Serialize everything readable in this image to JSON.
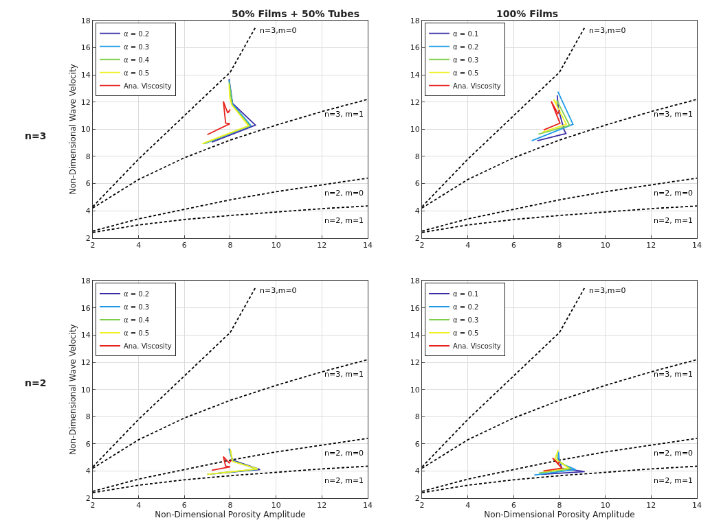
{
  "chart_data": [
    {
      "type": "line",
      "title": "50% Films + 50% Tubes",
      "ylabel": "Non-Dimensional Wave Velocity",
      "xlim": [
        2,
        14
      ],
      "ylim": [
        2,
        18
      ],
      "xticks": [
        2,
        4,
        6,
        8,
        10,
        12,
        14
      ],
      "yticks": [
        2,
        4,
        6,
        8,
        10,
        12,
        14,
        16,
        18
      ],
      "grid": true,
      "legend": "top left",
      "marker": "none",
      "annotations": [
        "n=3"
      ],
      "series": [
        {
          "name": "n=3,m=0",
          "color": "#000000",
          "line_style": "dashed",
          "x": [
            2,
            4,
            6,
            8,
            9.1
          ],
          "values": [
            4.3,
            7.8,
            11.0,
            14.2,
            17.5
          ]
        },
        {
          "name": "n=3, m=1",
          "color": "#000000",
          "line_style": "dashed",
          "x": [
            2,
            4,
            6,
            8,
            10,
            12,
            14
          ],
          "values": [
            4.2,
            6.3,
            7.9,
            9.2,
            10.3,
            11.3,
            12.2
          ]
        },
        {
          "name": "n=2, m=0",
          "color": "#000000",
          "line_style": "dashed",
          "x": [
            2,
            4,
            6,
            8,
            10,
            12,
            14
          ],
          "values": [
            2.5,
            3.4,
            4.1,
            4.8,
            5.4,
            5.9,
            6.4
          ]
        },
        {
          "name": "n=2, m=1",
          "color": "#000000",
          "line_style": "dashed",
          "x": [
            2,
            4,
            6,
            8,
            10,
            12,
            14
          ],
          "values": [
            2.4,
            2.95,
            3.35,
            3.65,
            3.9,
            4.15,
            4.35
          ]
        },
        {
          "name": "α = 0.2",
          "color": "#3b2fa8",
          "line_style": "solid",
          "x": [
            7.2,
            9.1,
            8.1,
            7.95
          ],
          "values": [
            9.05,
            10.3,
            11.9,
            13.7
          ]
        },
        {
          "name": "α = 0.3",
          "color": "#1e9be8",
          "line_style": "solid",
          "x": [
            6.9,
            8.9,
            8.1,
            7.95
          ],
          "values": [
            8.95,
            10.28,
            11.85,
            13.6
          ]
        },
        {
          "name": "α = 0.4",
          "color": "#7ecf4b",
          "line_style": "solid",
          "x": [
            6.85,
            8.85,
            8.08,
            7.95
          ],
          "values": [
            8.95,
            10.26,
            11.8,
            13.5
          ]
        },
        {
          "name": "α = 0.5",
          "color": "#f0f024",
          "line_style": "solid",
          "x": [
            6.78,
            8.8,
            8.07,
            7.98,
            7.95
          ],
          "values": [
            8.94,
            10.25,
            11.8,
            12.3,
            13.3
          ]
        },
        {
          "name": "Ana. Viscosity",
          "color": "#e8201c",
          "line_style": "solid",
          "x": [
            7.0,
            7.98,
            7.8,
            7.7,
            7.89,
            8.0
          ],
          "values": [
            9.6,
            10.4,
            10.45,
            12.05,
            11.2,
            11.45
          ]
        }
      ]
    },
    {
      "type": "line",
      "title": "100% Films",
      "xlim": [
        2,
        14
      ],
      "ylim": [
        2,
        18
      ],
      "xticks": [
        2,
        4,
        6,
        8,
        10,
        12,
        14
      ],
      "yticks": [
        2,
        4,
        6,
        8,
        10,
        12,
        14,
        16,
        18
      ],
      "grid": true,
      "legend": "top left",
      "marker": "none",
      "series": [
        {
          "name": "n=3,m=0",
          "color": "#000000",
          "line_style": "dashed",
          "x": [
            2,
            4,
            6,
            8,
            9.1
          ],
          "values": [
            4.3,
            7.8,
            11.0,
            14.2,
            17.5
          ]
        },
        {
          "name": "n=3, m=1",
          "color": "#000000",
          "line_style": "dashed",
          "x": [
            2,
            4,
            6,
            8,
            10,
            12,
            14
          ],
          "values": [
            4.2,
            6.3,
            7.9,
            9.2,
            10.3,
            11.3,
            12.2
          ]
        },
        {
          "name": "n=2, m=0",
          "color": "#000000",
          "line_style": "dashed",
          "x": [
            2,
            4,
            6,
            8,
            10,
            12,
            14
          ],
          "values": [
            2.5,
            3.4,
            4.1,
            4.8,
            5.4,
            5.9,
            6.4
          ]
        },
        {
          "name": "n=2, m=1",
          "color": "#000000",
          "line_style": "dashed",
          "x": [
            2,
            4,
            6,
            8,
            10,
            12,
            14
          ],
          "values": [
            2.4,
            2.95,
            3.35,
            3.65,
            3.9,
            4.15,
            4.35
          ]
        },
        {
          "name": "α = 0.1",
          "color": "#3b2fa8",
          "line_style": "solid",
          "x": [
            7.03,
            8.28,
            8.2,
            7.95,
            7.9
          ],
          "values": [
            9.15,
            9.68,
            9.95,
            11.5,
            12.5
          ]
        },
        {
          "name": "α = 0.2",
          "color": "#1e9be8",
          "line_style": "solid",
          "x": [
            6.79,
            8.59,
            7.93
          ],
          "values": [
            9.15,
            10.36,
            12.77
          ]
        },
        {
          "name": "α = 0.3",
          "color": "#7ecf4b",
          "line_style": "solid",
          "x": [
            7.08,
            8.44,
            7.88
          ],
          "values": [
            9.63,
            10.28,
            12.13
          ]
        },
        {
          "name": "α = 0.5",
          "color": "#f0f024",
          "line_style": "solid",
          "x": [
            7.26,
            8.3,
            7.74,
            7.88
          ],
          "values": [
            9.79,
            10.36,
            12.2,
            11.9
          ]
        },
        {
          "name": "Ana. Viscosity",
          "color": "#e8201c",
          "line_style": "solid",
          "x": [
            7.31,
            8.02,
            7.64,
            7.93,
            8.02
          ],
          "values": [
            9.95,
            10.44,
            12.05,
            11.16,
            11.4
          ]
        }
      ]
    },
    {
      "type": "line",
      "xlabel": "Non-Dimensional Porosity Amplitude",
      "ylabel": "Non-Dimensional Wave Velocity",
      "xlim": [
        2,
        14
      ],
      "ylim": [
        2,
        18
      ],
      "xticks": [
        2,
        4,
        6,
        8,
        10,
        12,
        14
      ],
      "yticks": [
        2,
        4,
        6,
        8,
        10,
        12,
        14,
        16,
        18
      ],
      "grid": true,
      "legend": "top left",
      "marker": "none",
      "annotations": [
        "n=2"
      ],
      "series": [
        {
          "name": "n=3,m=0",
          "color": "#000000",
          "line_style": "dashed",
          "x": [
            2,
            4,
            6,
            8,
            9.1
          ],
          "values": [
            4.3,
            7.8,
            11.0,
            14.2,
            17.5
          ]
        },
        {
          "name": "n=3, m=1",
          "color": "#000000",
          "line_style": "dashed",
          "x": [
            2,
            4,
            6,
            8,
            10,
            12,
            14
          ],
          "values": [
            4.2,
            6.3,
            7.9,
            9.2,
            10.3,
            11.3,
            12.2
          ]
        },
        {
          "name": "n=2, m=0",
          "color": "#000000",
          "line_style": "dashed",
          "x": [
            2,
            4,
            6,
            8,
            10,
            12,
            14
          ],
          "values": [
            2.5,
            3.4,
            4.1,
            4.8,
            5.4,
            5.9,
            6.4
          ]
        },
        {
          "name": "n=2, m=1",
          "color": "#000000",
          "line_style": "dashed",
          "x": [
            2,
            4,
            6,
            8,
            10,
            12,
            14
          ],
          "values": [
            2.4,
            2.95,
            3.35,
            3.65,
            3.9,
            4.15,
            4.35
          ]
        },
        {
          "name": "α = 0.2",
          "color": "#3b2fa8",
          "line_style": "solid",
          "x": [
            7.3,
            9.3,
            8.1,
            7.95
          ],
          "values": [
            3.8,
            4.1,
            4.8,
            5.65
          ]
        },
        {
          "name": "α = 0.3",
          "color": "#1e9be8",
          "line_style": "solid",
          "x": [
            7.0,
            9.2,
            8.1,
            7.95
          ],
          "values": [
            3.75,
            4.12,
            4.75,
            5.6
          ]
        },
        {
          "name": "α = 0.4",
          "color": "#7ecf4b",
          "line_style": "solid",
          "x": [
            7.0,
            9.2,
            8.1,
            8.0
          ],
          "values": [
            3.75,
            4.14,
            4.72,
            5.6
          ]
        },
        {
          "name": "α = 0.5",
          "color": "#f0f024",
          "line_style": "solid",
          "x": [
            7.0,
            9.2,
            8.1,
            8.0
          ],
          "values": [
            3.75,
            4.15,
            4.7,
            5.6
          ]
        },
        {
          "name": "Ana. Viscosity",
          "color": "#e8201c",
          "line_style": "solid",
          "x": [
            7.2,
            8.0,
            7.8,
            7.7,
            7.95,
            8.05
          ],
          "values": [
            4.05,
            4.3,
            4.35,
            5.05,
            4.6,
            4.8
          ]
        }
      ]
    },
    {
      "type": "line",
      "xlabel": "Non-Dimensional Porosity Amplitude",
      "xlim": [
        2,
        14
      ],
      "ylim": [
        2,
        18
      ],
      "xticks": [
        2,
        4,
        6,
        8,
        10,
        12,
        14
      ],
      "yticks": [
        2,
        4,
        6,
        8,
        10,
        12,
        14,
        16,
        18
      ],
      "grid": true,
      "legend": "top left",
      "marker": "none",
      "series": [
        {
          "name": "n=3,m=0",
          "color": "#000000",
          "line_style": "dashed",
          "x": [
            2,
            4,
            6,
            8,
            9.1
          ],
          "values": [
            4.3,
            7.8,
            11.0,
            14.2,
            17.5
          ]
        },
        {
          "name": "n=3, m=1",
          "color": "#000000",
          "line_style": "dashed",
          "x": [
            2,
            4,
            6,
            8,
            10,
            12,
            14
          ],
          "values": [
            4.2,
            6.3,
            7.9,
            9.2,
            10.3,
            11.3,
            12.2
          ]
        },
        {
          "name": "n=2, m=0",
          "color": "#000000",
          "line_style": "dashed",
          "x": [
            2,
            4,
            6,
            8,
            10,
            12,
            14
          ],
          "values": [
            2.5,
            3.4,
            4.1,
            4.8,
            5.4,
            5.9,
            6.4
          ]
        },
        {
          "name": "n=2, m=1",
          "color": "#000000",
          "line_style": "dashed",
          "x": [
            2,
            4,
            6,
            8,
            10,
            12,
            14
          ],
          "values": [
            2.4,
            2.95,
            3.35,
            3.65,
            3.9,
            4.15,
            4.35
          ]
        },
        {
          "name": "α = 0.1",
          "color": "#3b2fa8",
          "line_style": "solid",
          "x": [
            7.2,
            9.1,
            8.1,
            7.95
          ],
          "values": [
            3.75,
            3.95,
            4.2,
            5.0
          ]
        },
        {
          "name": "α = 0.2",
          "color": "#1e9be8",
          "line_style": "solid",
          "x": [
            6.9,
            8.7,
            8.0,
            7.95
          ],
          "values": [
            3.7,
            4.1,
            4.6,
            5.4
          ]
        },
        {
          "name": "α = 0.3",
          "color": "#7ecf4b",
          "line_style": "solid",
          "x": [
            7.1,
            8.5,
            7.9,
            7.9
          ],
          "values": [
            3.85,
            4.15,
            4.8,
            5.3
          ]
        },
        {
          "name": "α = 0.5",
          "color": "#f0f024",
          "line_style": "solid",
          "x": [
            7.3,
            8.4,
            7.8,
            7.95
          ],
          "values": [
            3.95,
            4.2,
            4.9,
            5.55
          ]
        },
        {
          "name": "Ana. Viscosity",
          "color": "#e8201c",
          "line_style": "solid",
          "x": [
            7.3,
            8.1,
            7.7,
            7.95,
            8.0
          ],
          "values": [
            4.0,
            4.2,
            4.95,
            4.55,
            4.7
          ]
        }
      ]
    }
  ]
}
